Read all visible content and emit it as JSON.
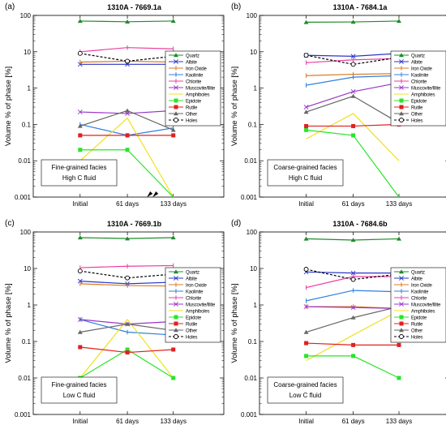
{
  "chart_data": [
    {
      "type": "line",
      "panel_label": "(a)",
      "title": "1310A - 7669.1a",
      "ylabel": "Volume % of phase [%]",
      "yscale": "log",
      "ylim": [
        0.001,
        100
      ],
      "yticks": [
        "0.001",
        "0.01",
        "0.1",
        "1",
        "10",
        "100"
      ],
      "categories": [
        "Initial",
        "61 days",
        "133 days"
      ],
      "annotation": [
        "Fine-grained facies",
        "High C fluid"
      ],
      "series": [
        {
          "name": "Quartz",
          "values": [
            70,
            67,
            70
          ]
        },
        {
          "name": "Albite",
          "values": [
            4.5,
            4.5,
            4.5
          ]
        },
        {
          "name": "Iron Oxide",
          "values": [
            5.2,
            5.5,
            5.2
          ]
        },
        {
          "name": "Kaolinite",
          "values": [
            0.1,
            0.05,
            0.08
          ]
        },
        {
          "name": "Chlorite",
          "values": [
            10,
            13,
            12
          ]
        },
        {
          "name": "Muscovite/Illite",
          "values": [
            0.22,
            0.2,
            0.24
          ]
        },
        {
          "name": "Amphiboles",
          "values": [
            0.01,
            0.15,
            0.001
          ]
        },
        {
          "name": "Epidote",
          "values": [
            0.02,
            0.02,
            0.001
          ]
        },
        {
          "name": "Rutile",
          "values": [
            0.05,
            0.05,
            0.05
          ]
        },
        {
          "name": "Other",
          "values": [
            0.09,
            0.24,
            0.07
          ]
        },
        {
          "name": "Holes",
          "values": [
            9,
            5.5,
            7.5
          ]
        }
      ]
    },
    {
      "type": "line",
      "panel_label": "(b)",
      "title": "1310A - 7684.1a",
      "ylabel": "Volume % of phase [%]",
      "yscale": "log",
      "ylim": [
        0.001,
        100
      ],
      "yticks": [
        "0.001",
        "0.01",
        "0.1",
        "1",
        "10",
        "100"
      ],
      "categories": [
        "Initial",
        "61 days",
        "133 days"
      ],
      "annotation": [
        "Coarse-grained facies",
        "High C fluid"
      ],
      "series": [
        {
          "name": "Quartz",
          "values": [
            65,
            66,
            70
          ]
        },
        {
          "name": "Albite",
          "values": [
            8,
            7.5,
            9
          ]
        },
        {
          "name": "Iron Oxide",
          "values": [
            2.2,
            2.4,
            2.5
          ]
        },
        {
          "name": "Kaolinite",
          "values": [
            1.2,
            2,
            2.2
          ]
        },
        {
          "name": "Chlorite",
          "values": [
            5,
            6,
            6.5
          ]
        },
        {
          "name": "Muscovite/Illite",
          "values": [
            0.3,
            0.8,
            1.4
          ]
        },
        {
          "name": "Amphiboles",
          "values": [
            0.04,
            0.2,
            0.01
          ]
        },
        {
          "name": "Epidote",
          "values": [
            0.07,
            0.05,
            0.001
          ]
        },
        {
          "name": "Rutile",
          "values": [
            0.09,
            0.09,
            0.1
          ]
        },
        {
          "name": "Other",
          "values": [
            0.22,
            0.6,
            0.11
          ]
        },
        {
          "name": "Holes",
          "values": [
            8,
            4.5,
            7
          ]
        }
      ]
    },
    {
      "type": "line",
      "panel_label": "(c)",
      "title": "1310A - 7669.1b",
      "ylabel": "Volume % of phase [%]",
      "yscale": "log",
      "ylim": [
        0.001,
        100
      ],
      "yticks": [
        "0.001",
        "0.01",
        "0.1",
        "1",
        "10",
        "100"
      ],
      "categories": [
        "Initial",
        "61 days",
        "133 days"
      ],
      "annotation": [
        "Fine-grained facies",
        "Low C fluid"
      ],
      "series": [
        {
          "name": "Quartz",
          "values": [
            70,
            66,
            70
          ]
        },
        {
          "name": "Albite",
          "values": [
            4.5,
            3.8,
            4.2
          ]
        },
        {
          "name": "Iron Oxide",
          "values": [
            3.8,
            3.4,
            3.3
          ]
        },
        {
          "name": "Kaolinite",
          "values": [
            0.4,
            0.18,
            0.15
          ]
        },
        {
          "name": "Chlorite",
          "values": [
            10.5,
            11.5,
            12
          ]
        },
        {
          "name": "Muscovite/Illite",
          "values": [
            0.4,
            0.3,
            0.35
          ]
        },
        {
          "name": "Amphiboles",
          "values": [
            0.01,
            0.4,
            0.01
          ]
        },
        {
          "name": "Epidote",
          "values": [
            0.01,
            0.06,
            0.01
          ]
        },
        {
          "name": "Rutile",
          "values": [
            0.07,
            0.05,
            0.06
          ]
        },
        {
          "name": "Other",
          "values": [
            0.18,
            0.3,
            0.2
          ]
        },
        {
          "name": "Holes",
          "values": [
            8.5,
            5.5,
            7
          ]
        }
      ]
    },
    {
      "type": "line",
      "panel_label": "(d)",
      "title": "1310A - 7684.6b",
      "ylabel": "Volume % of phase [%]",
      "yscale": "log",
      "ylim": [
        0.001,
        100
      ],
      "yticks": [
        "0.001",
        "0.01",
        "0.1",
        "1",
        "10",
        "100"
      ],
      "categories": [
        "Initial",
        "61 days",
        "133 days"
      ],
      "annotation": [
        "Coarse-grained facies",
        "Low C fluid"
      ],
      "series": [
        {
          "name": "Quartz",
          "values": [
            65,
            60,
            65
          ]
        },
        {
          "name": "Albite",
          "values": [
            8,
            7.5,
            7.5
          ]
        },
        {
          "name": "Iron Oxide",
          "values": [
            0.9,
            0.9,
            0.8
          ]
        },
        {
          "name": "Kaolinite",
          "values": [
            1.3,
            2.5,
            2.3
          ]
        },
        {
          "name": "Chlorite",
          "values": [
            3,
            6,
            6
          ]
        },
        {
          "name": "Muscovite/Illite",
          "values": [
            0.9,
            0.85,
            0.8
          ]
        },
        {
          "name": "Amphiboles",
          "values": [
            0.03,
            0.15,
            0.7
          ]
        },
        {
          "name": "Epidote",
          "values": [
            0.04,
            0.04,
            0.01
          ]
        },
        {
          "name": "Rutile",
          "values": [
            0.09,
            0.08,
            0.08
          ]
        },
        {
          "name": "Other",
          "values": [
            0.18,
            0.45,
            0.9
          ]
        },
        {
          "name": "Holes",
          "values": [
            9.5,
            5,
            7
          ]
        }
      ]
    }
  ],
  "legend": {
    "placement": "right",
    "entries": [
      {
        "name": "Quartz",
        "color": "#1e8c2a",
        "marker": "triangle",
        "dash": false
      },
      {
        "name": "Albite",
        "color": "#2a36c8",
        "marker": "x",
        "dash": false
      },
      {
        "name": "Iron Oxide",
        "color": "#d87a20",
        "marker": "bar",
        "dash": false
      },
      {
        "name": "Kaolinite",
        "color": "#2f7fe0",
        "marker": "bar",
        "dash": false
      },
      {
        "name": "Chlorite",
        "color": "#ee3da0",
        "marker": "bar",
        "dash": false
      },
      {
        "name": "Muscovite/Illite",
        "color": "#9a36c8",
        "marker": "x",
        "dash": false
      },
      {
        "name": "Amphiboles",
        "color": "#f0e020",
        "marker": "none",
        "dash": false
      },
      {
        "name": "Epidote",
        "color": "#28e628",
        "marker": "square",
        "dash": false
      },
      {
        "name": "Rutile",
        "color": "#e02020",
        "marker": "square",
        "dash": false
      },
      {
        "name": "Other",
        "color": "#666666",
        "marker": "triangle",
        "dash": false
      },
      {
        "name": "Holes",
        "color": "#000000",
        "marker": "circle",
        "dash": true
      }
    ]
  }
}
